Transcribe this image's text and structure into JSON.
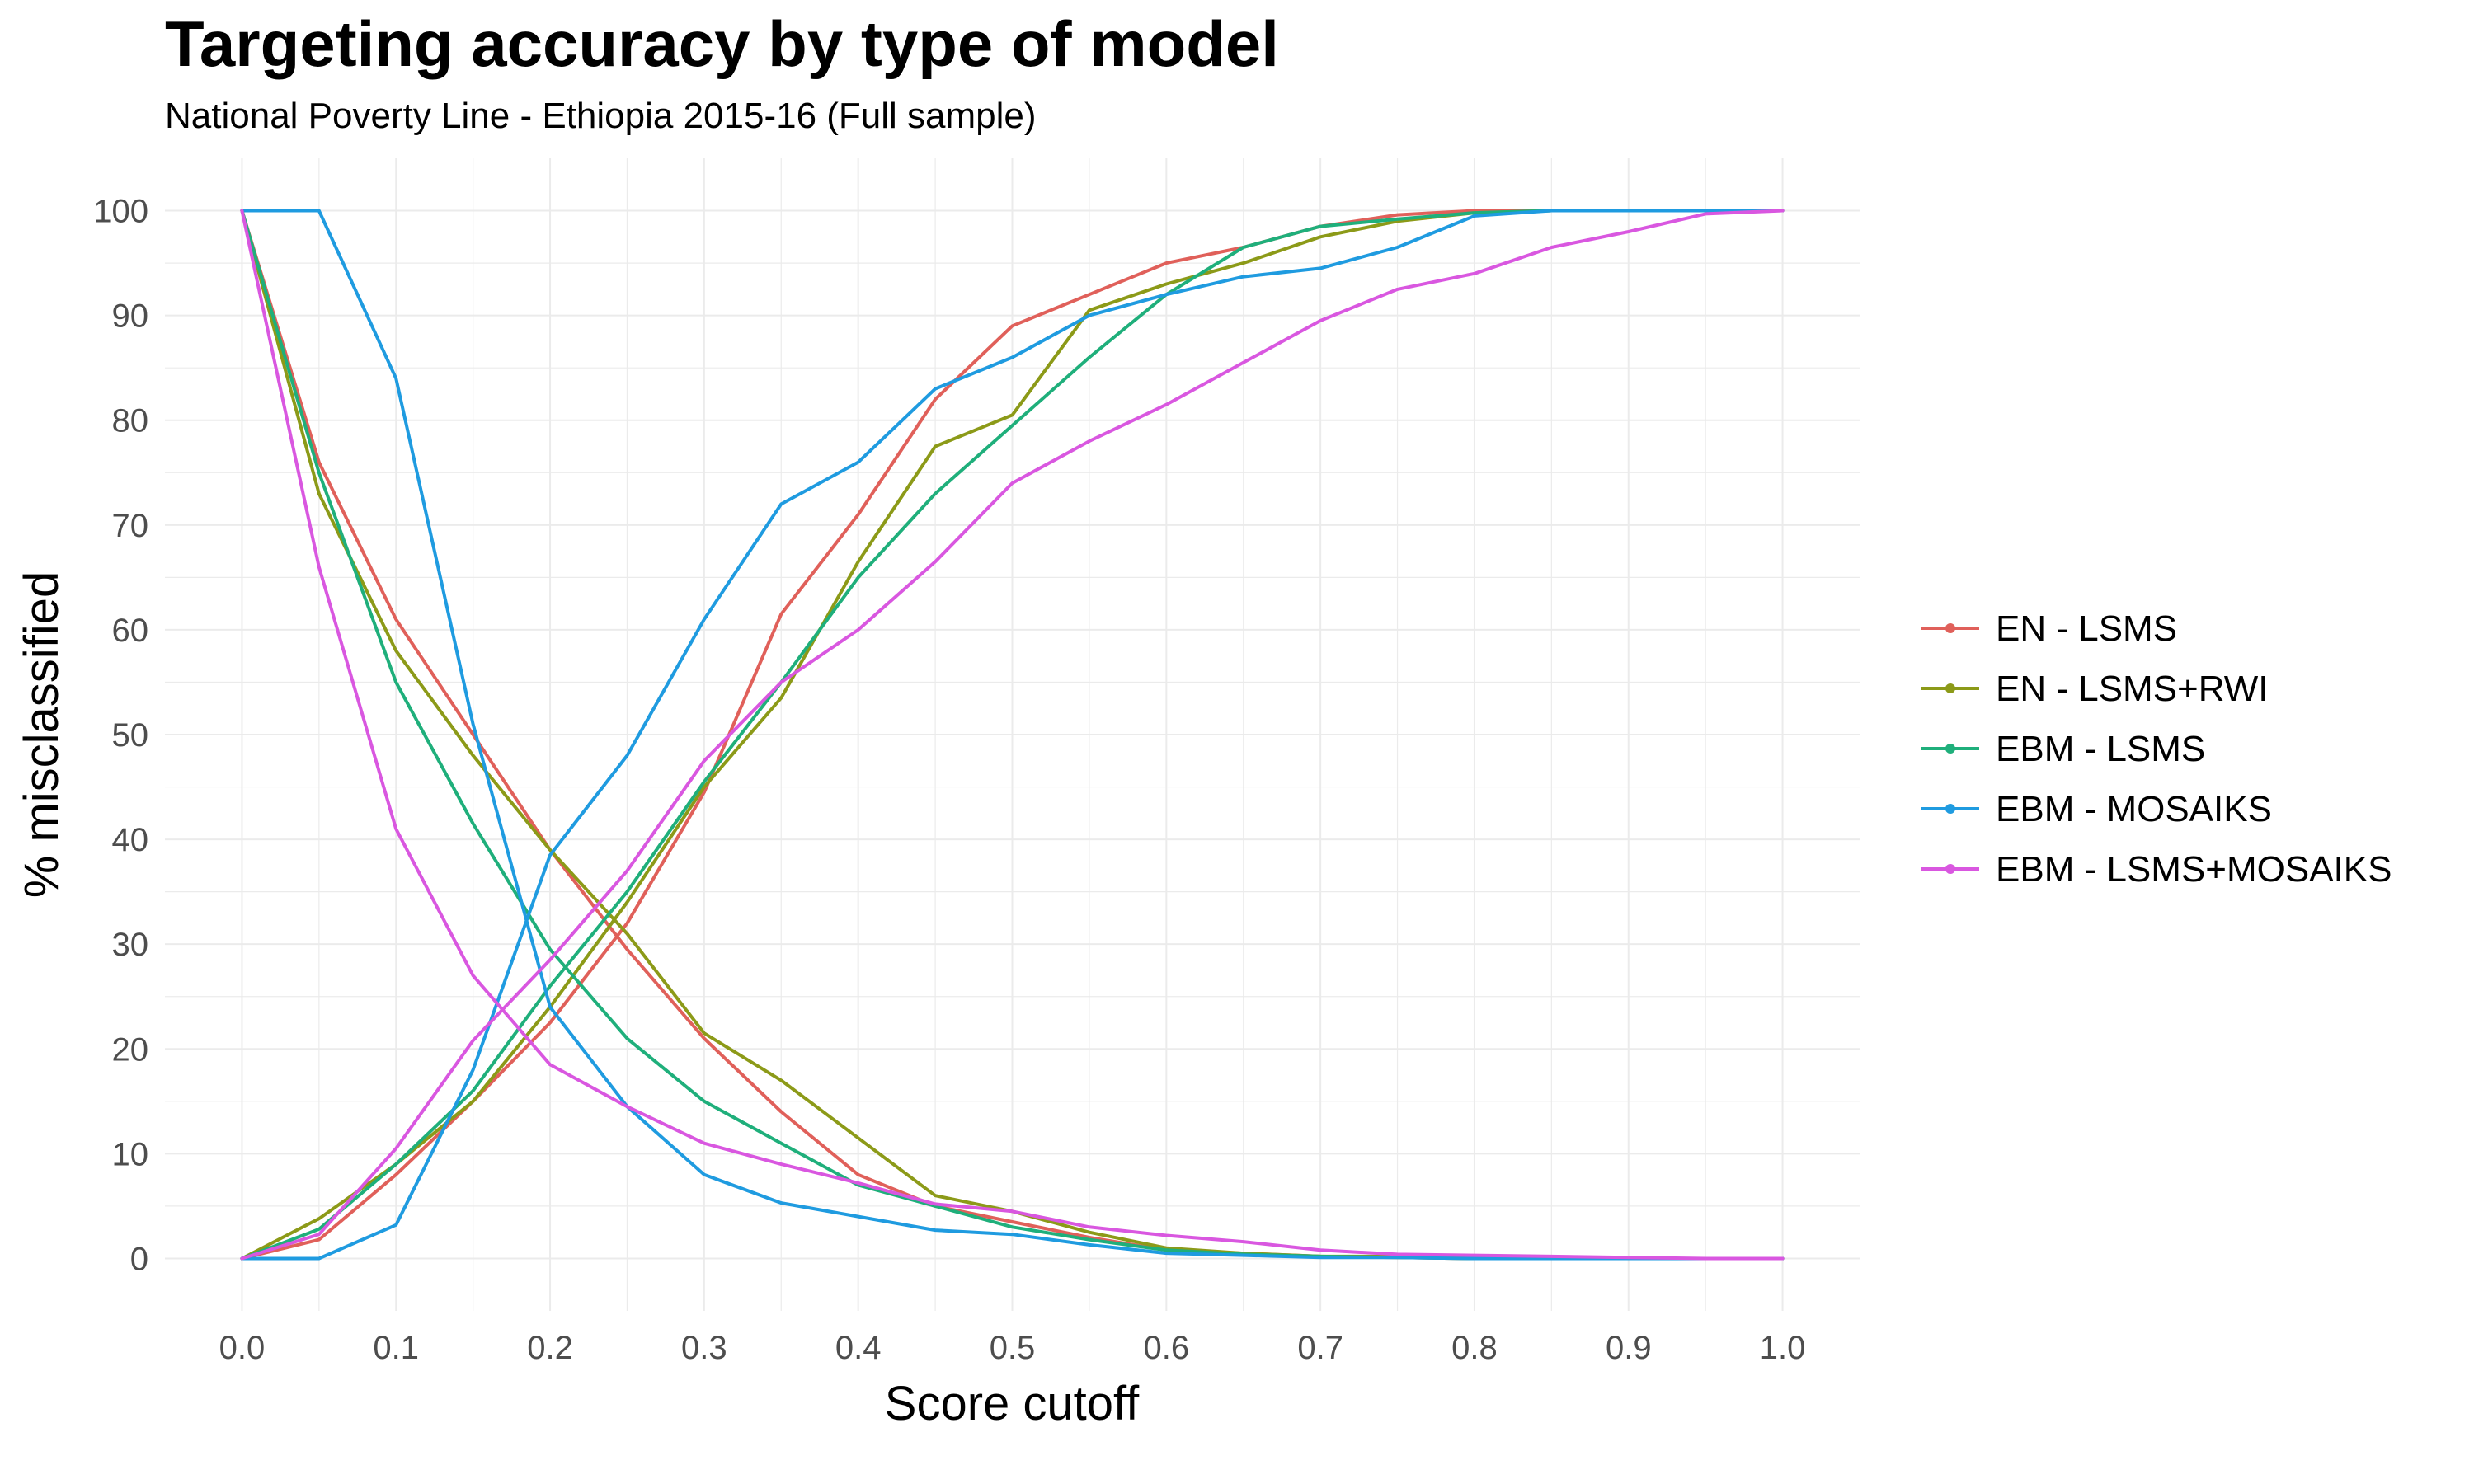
{
  "chart_data": {
    "type": "line",
    "title": "Targeting accuracy by type of model",
    "subtitle": "National Poverty Line - Ethiopia 2015-16 (Full sample)",
    "xlabel": "Score cutoff",
    "ylabel": "% misclassified",
    "xlim": [
      -0.05,
      1.05
    ],
    "ylim": [
      -5,
      105
    ],
    "x_ticks": [
      "0.0",
      "0.1",
      "0.2",
      "0.3",
      "0.4",
      "0.5",
      "0.6",
      "0.7",
      "0.8",
      "0.9",
      "1.0"
    ],
    "y_ticks": [
      "0",
      "10",
      "20",
      "30",
      "40",
      "50",
      "60",
      "70",
      "80",
      "90",
      "100"
    ],
    "grid": true,
    "legend_position": "right",
    "x": [
      0,
      0.05,
      0.1,
      0.15,
      0.2,
      0.25,
      0.3,
      0.35,
      0.4,
      0.45,
      0.5,
      0.55,
      0.6,
      0.65,
      0.7,
      0.75,
      0.8,
      0.85,
      0.9,
      0.95,
      1.0
    ],
    "series": [
      {
        "name": "EN - LSMS",
        "color": "#E0605A",
        "exclusion_error": [
          100,
          76,
          61,
          50,
          39,
          29.5,
          21,
          14,
          8,
          5,
          3.5,
          2,
          0.8,
          0.5,
          0.2,
          0.1,
          0,
          0,
          0,
          0,
          0
        ],
        "inclusion_error": [
          0,
          1.8,
          8,
          15,
          22.5,
          32,
          44.5,
          61.5,
          71,
          82,
          89,
          92,
          95,
          96.5,
          98.5,
          99.6,
          100,
          100,
          100,
          100,
          100
        ]
      },
      {
        "name": "EN - LSMS+RWI",
        "color": "#8C9A18",
        "exclusion_error": [
          100,
          73,
          58,
          48,
          39,
          31,
          21.5,
          17,
          11.5,
          6,
          4.5,
          2.5,
          1,
          0.5,
          0.2,
          0.2,
          0.1,
          0,
          0,
          0,
          0
        ],
        "inclusion_error": [
          0,
          3.8,
          9,
          15,
          24,
          34,
          45,
          53.5,
          66.5,
          77.5,
          80.5,
          90.5,
          93,
          95,
          97.5,
          99,
          99.8,
          100,
          100,
          100,
          100
        ]
      },
      {
        "name": "EBM - LSMS",
        "color": "#1FAF7B",
        "exclusion_error": [
          100,
          75,
          55,
          41.5,
          29.5,
          21,
          15,
          11,
          7,
          5,
          3,
          1.8,
          0.8,
          0.4,
          0.2,
          0.1,
          0,
          0,
          0,
          0,
          0
        ],
        "inclusion_error": [
          0,
          2.8,
          9,
          16,
          26,
          35,
          45.5,
          55,
          65,
          73,
          79.5,
          86,
          92,
          96.5,
          98.5,
          99.2,
          99.8,
          100,
          100,
          100,
          100
        ]
      },
      {
        "name": "EBM - MOSAIKS",
        "color": "#1F9BE0",
        "exclusion_error": [
          100,
          100,
          84,
          51,
          24,
          14.5,
          8,
          5.3,
          4,
          2.7,
          2.3,
          1.3,
          0.5,
          0.3,
          0.1,
          0.1,
          0,
          0,
          0,
          0,
          0
        ],
        "inclusion_error": [
          0,
          0,
          3.2,
          18,
          38.5,
          48,
          61,
          72,
          76,
          83,
          86,
          90,
          92,
          93.7,
          94.5,
          96.5,
          99.5,
          100,
          100,
          100,
          100
        ]
      },
      {
        "name": "EBM - LSMS+MOSAIKS",
        "color": "#D957E0",
        "exclusion_error": [
          100,
          66,
          41,
          27,
          18.5,
          14.5,
          11,
          9,
          7.2,
          5.2,
          4.5,
          3,
          2.2,
          1.6,
          0.8,
          0.4,
          0.3,
          0.2,
          0.1,
          0,
          0
        ],
        "inclusion_error": [
          0,
          2.3,
          10.5,
          20.8,
          28.5,
          37,
          47.5,
          55,
          60,
          66.5,
          74,
          78,
          81.5,
          85.5,
          89.5,
          92.5,
          94,
          96.5,
          98,
          99.7,
          100
        ]
      }
    ]
  }
}
